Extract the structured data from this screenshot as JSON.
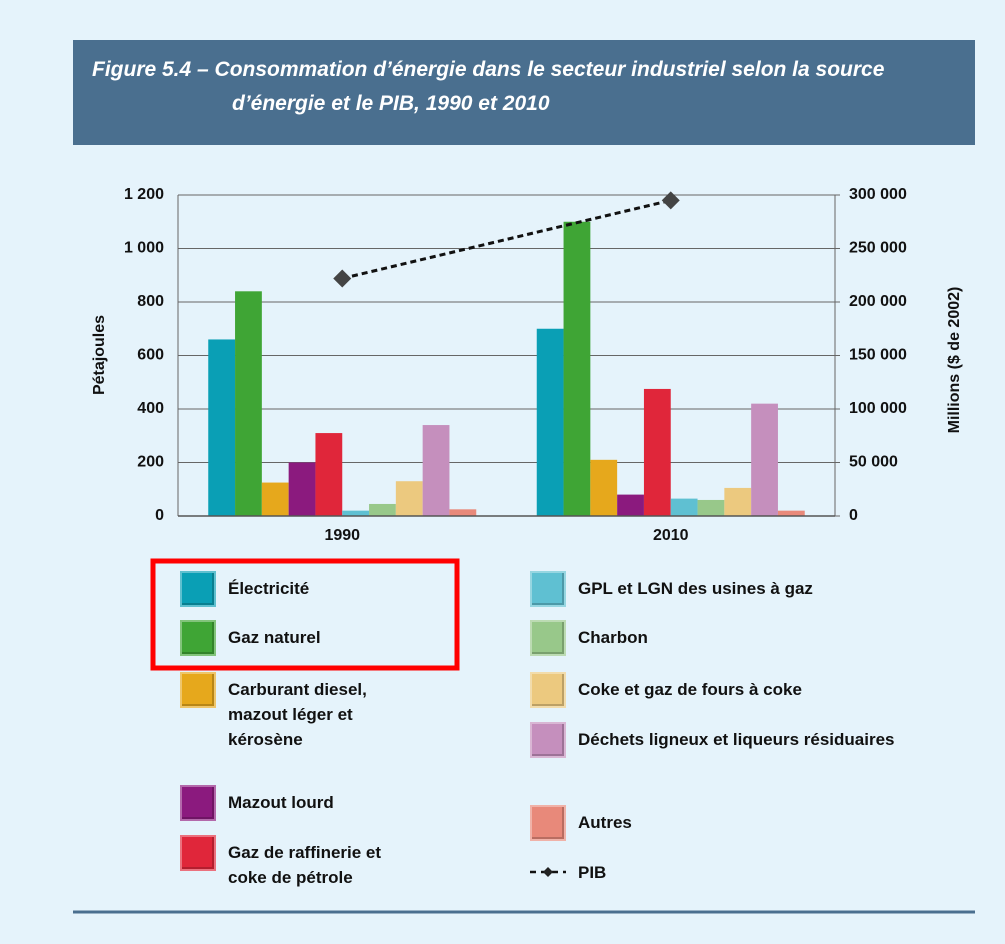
{
  "chart_data": {
    "type": "bar",
    "title": "Figure 5.4 – Consommation d’énergie dans le secteur industriel selon la source d’énergie et le PIB, 1990 et 2010",
    "ylabel": "Pétajoules",
    "y2label": "Millions ($ de 2002)",
    "categories": [
      "1990",
      "2010"
    ],
    "series": [
      {
        "name": "Électricité",
        "color": "#0a9fb5",
        "values": [
          660,
          700
        ]
      },
      {
        "name": "Gaz naturel",
        "color": "#3fa535",
        "values": [
          840,
          1100
        ]
      },
      {
        "name": "Carburant diesel, mazout léger et kérosène",
        "color": "#e6a81c",
        "values": [
          125,
          210
        ]
      },
      {
        "name": "Mazout lourd",
        "color": "#8b1a7e",
        "values": [
          200,
          80
        ]
      },
      {
        "name": "Gaz de raffinerie et coke de pétrole",
        "color": "#e0263a",
        "values": [
          310,
          475
        ]
      },
      {
        "name": "GPL et LGN des usines à gaz",
        "color": "#5fc0d2",
        "values": [
          20,
          65
        ]
      },
      {
        "name": "Charbon",
        "color": "#98c88a",
        "values": [
          45,
          60
        ]
      },
      {
        "name": "Coke et gaz de fours à coke",
        "color": "#ecc97f",
        "values": [
          130,
          105
        ]
      },
      {
        "name": "Déchets ligneux et liqueurs résiduaires",
        "color": "#c58fbd",
        "values": [
          340,
          420
        ]
      },
      {
        "name": "Autres",
        "color": "#e8897a",
        "values": [
          25,
          20
        ]
      },
      {
        "name": "PIB",
        "color": "#111111",
        "axis": "y2",
        "values": [
          222000,
          295000
        ]
      }
    ],
    "ylim": [
      0,
      1200
    ],
    "yticks": [
      0,
      200,
      400,
      600,
      800,
      {
        "value": 1000,
        "label": "1 000"
      },
      {
        "value": 1200,
        "label": "1 200"
      }
    ],
    "y2lim": [
      0,
      300000
    ],
    "y2ticks": [
      0,
      {
        "value": 50000,
        "label": "50 000"
      },
      {
        "value": 100000,
        "label": "100 000"
      },
      {
        "value": 150000,
        "label": "150 000"
      },
      {
        "value": 200000,
        "label": "200 000"
      },
      {
        "value": 250000,
        "label": "250 000"
      },
      {
        "value": 300000,
        "label": "300 000"
      }
    ],
    "grid": true
  }
}
